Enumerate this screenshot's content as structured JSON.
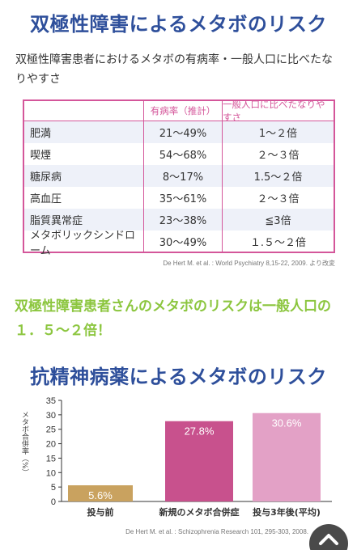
{
  "section1": {
    "title": "双極性障害によるメタボのリスク",
    "intro": "双極性障害患者におけるメタボの有病率・一般人口に比べたなりやすさ",
    "table": {
      "headers": [
        "",
        "有病率（推計）",
        "一般人口に比べたなりやすさ"
      ],
      "rows": [
        [
          "肥満",
          "21～49%",
          "1～２倍"
        ],
        [
          "喫煙",
          "54～68%",
          "２～３倍"
        ],
        [
          "糖尿病",
          "8～17%",
          "1.5～２倍"
        ],
        [
          "高血圧",
          "35～61%",
          "２～３倍"
        ],
        [
          "脂質異常症",
          "23～38%",
          "≦3倍"
        ],
        [
          "メタボリックシンドローム",
          "30～49%",
          "１.５～２倍"
        ]
      ]
    },
    "citation": "De Hert M. et al. : World Psychiatry 8,15-22, 2009. より改変",
    "conclusion": "双極性障害患者さんのメタボのリスクは一般人口の１．５～２倍！"
  },
  "section2": {
    "title": "抗精神病薬によるメタボのリスク",
    "citation": "De Hert M. et al. : Schizophrenia Research 101, 295-303, 2008."
  },
  "chart_data": {
    "type": "bar",
    "categories": [
      "投与前",
      "新規のメタボ合併症",
      "投与3年後(平均)"
    ],
    "values": [
      5.6,
      27.8,
      30.6
    ],
    "value_labels": [
      "5.6%",
      "27.8%",
      "30.6%"
    ],
    "colors": [
      "#c9a25f",
      "#c8518d",
      "#e3a1c6"
    ],
    "ylabel": "メタボ合併率（%）",
    "ylim": [
      0,
      35
    ],
    "yticks": [
      0,
      5,
      10,
      15,
      20,
      25,
      30,
      35
    ],
    "grid": false
  },
  "ui": {
    "scroll_top_icon": "chevron-up-icon"
  }
}
